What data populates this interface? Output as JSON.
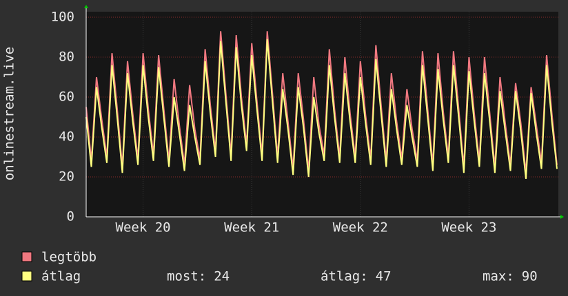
{
  "chart_data": {
    "type": "line",
    "y_label": "onlinestream.live",
    "ylim": [
      0,
      100
    ],
    "yticks": [
      0,
      20,
      40,
      60,
      80,
      100
    ],
    "grid": true,
    "xlim": [
      0,
      91
    ],
    "xticks": [
      {
        "value": 11,
        "label": "Week 20"
      },
      {
        "value": 32,
        "label": "Week 21"
      },
      {
        "value": 53,
        "label": "Week 22"
      },
      {
        "value": 74,
        "label": "Week 23"
      }
    ],
    "series": [
      {
        "name": "legtöbb",
        "color": "#f07880",
        "values": [
          55,
          28,
          70,
          49,
          30,
          82,
          54,
          25,
          78,
          52,
          29,
          82,
          54,
          31,
          81,
          54,
          28,
          69,
          46,
          26,
          66,
          44,
          29,
          84,
          56,
          33,
          93,
          62,
          31,
          91,
          60,
          36,
          87,
          58,
          31,
          93,
          62,
          30,
          72,
          48,
          24,
          72,
          49,
          23,
          70,
          46,
          31,
          84,
          54,
          30,
          80,
          52,
          30,
          78,
          51,
          29,
          86,
          56,
          28,
          72,
          48,
          29,
          64,
          44,
          28,
          83,
          54,
          26,
          82,
          53,
          30,
          83,
          54,
          25,
          80,
          52,
          28,
          80,
          52,
          25,
          70,
          47,
          26,
          67,
          47,
          22,
          65,
          46,
          27,
          81,
          52,
          26
        ]
      },
      {
        "name": "átlag",
        "color": "#ffff80",
        "values": [
          50,
          25,
          65,
          45,
          27,
          76,
          50,
          22,
          72,
          48,
          26,
          76,
          50,
          28,
          75,
          50,
          25,
          60,
          42,
          23,
          56,
          40,
          26,
          78,
          52,
          30,
          88,
          58,
          28,
          85,
          56,
          33,
          81,
          54,
          28,
          89,
          58,
          27,
          64,
          44,
          21,
          65,
          45,
          20,
          60,
          42,
          28,
          76,
          50,
          27,
          72,
          48,
          27,
          70,
          47,
          26,
          79,
          52,
          25,
          64,
          44,
          26,
          56,
          40,
          25,
          76,
          50,
          23,
          74,
          49,
          27,
          76,
          50,
          22,
          73,
          48,
          25,
          72,
          48,
          22,
          63,
          43,
          23,
          63,
          43,
          19,
          62,
          42,
          24,
          76,
          48,
          24
        ]
      }
    ],
    "stats": [
      {
        "label": "most:",
        "value": 24
      },
      {
        "label": "átlag:",
        "value": 47
      },
      {
        "label": "max:",
        "value": 90
      }
    ]
  }
}
